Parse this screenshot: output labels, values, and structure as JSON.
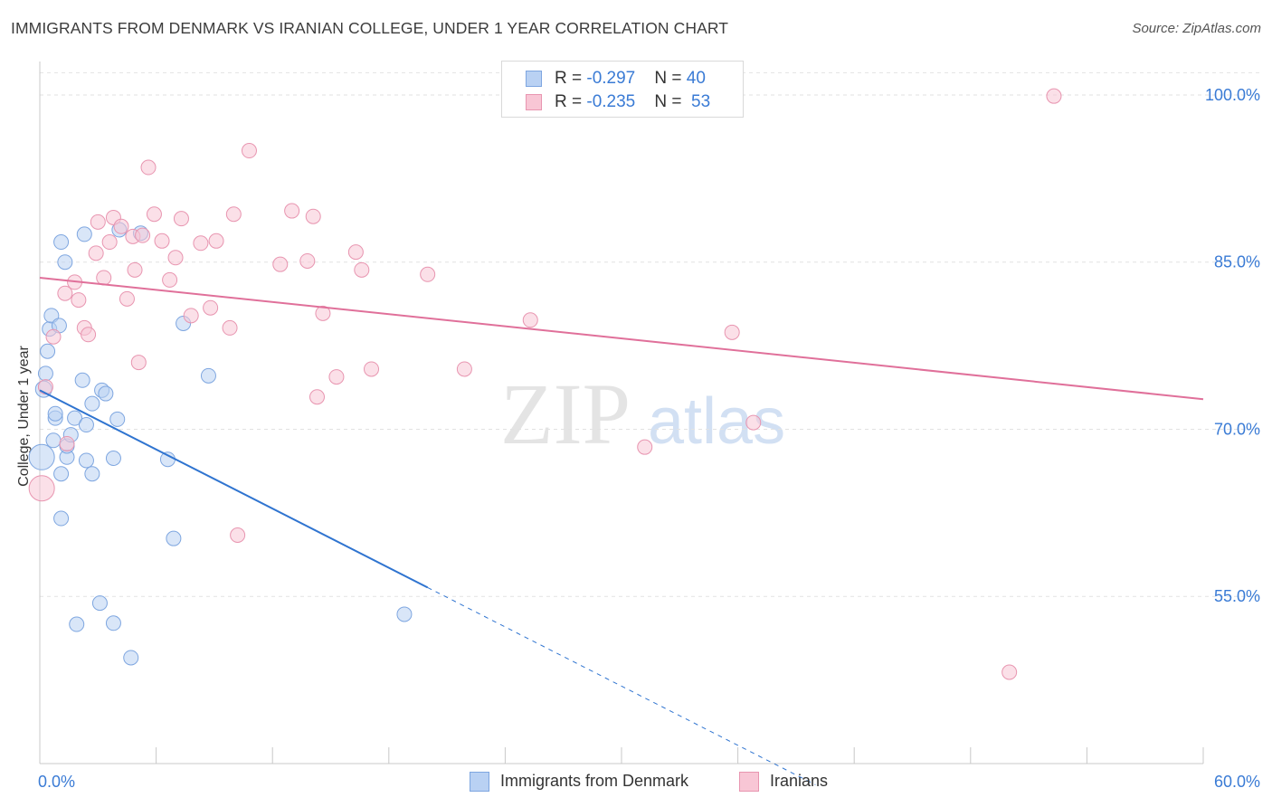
{
  "title": "IMMIGRANTS FROM DENMARK VS IRANIAN COLLEGE, UNDER 1 YEAR CORRELATION CHART",
  "source": "Source: ZipAtlas.com",
  "watermark": {
    "zip": "ZIP",
    "atlas": "atlas"
  },
  "colors": {
    "blue_fill": "#b9d1f3",
    "blue_stroke": "#7ea6e0",
    "blue_line": "#2f74d0",
    "pink_fill": "#f8c6d5",
    "pink_stroke": "#e895b0",
    "pink_line": "#e0709a",
    "axis_label": "#3a7bd5",
    "grid": "#e2e2e2"
  },
  "stats_box": {
    "rows": [
      {
        "series": "Immigrants from Denmark",
        "r_label": "R = ",
        "r_value": "-0.297",
        "n_label": "N = ",
        "n_value": "40"
      },
      {
        "series": "Iranians",
        "r_label": "R = ",
        "r_value": "-0.235",
        "n_label": "N = ",
        "n_value": "53"
      }
    ]
  },
  "chart_data": {
    "type": "scatter",
    "title": "IMMIGRANTS FROM DENMARK VS IRANIAN COLLEGE, UNDER 1 YEAR CORRELATION CHART",
    "xlabel": "",
    "ylabel": "College, Under 1 year",
    "xlim": [
      0,
      60
    ],
    "ylim": [
      40,
      103
    ],
    "x_tick_labels": [
      {
        "value": 0,
        "label": "0.0%"
      },
      {
        "value": 60,
        "label": "60.0%"
      }
    ],
    "y_ticks": [
      {
        "value": 55,
        "label": "55.0%"
      },
      {
        "value": 70,
        "label": "70.0%"
      },
      {
        "value": 85,
        "label": "85.0%"
      },
      {
        "value": 100,
        "label": "100.0%"
      }
    ],
    "grid": true,
    "legend": [
      "Immigrants from Denmark",
      "Iranians"
    ],
    "series": [
      {
        "name": "Immigrants from Denmark",
        "color": "blue",
        "trend": {
          "x0": 0,
          "y0": 73.5,
          "x1": 20,
          "y1": 55.8,
          "dashed_to_x": 40
        },
        "points": [
          [
            0.1,
            67.5,
            14
          ],
          [
            0.2,
            73.6,
            9
          ],
          [
            0.3,
            75.0,
            8
          ],
          [
            0.4,
            77.0,
            8
          ],
          [
            0.5,
            79.0,
            8
          ],
          [
            0.6,
            80.2,
            8
          ],
          [
            0.7,
            69.0,
            8
          ],
          [
            0.8,
            71.0,
            8
          ],
          [
            0.8,
            71.4,
            8
          ],
          [
            1.0,
            79.3,
            8
          ],
          [
            1.1,
            86.8,
            8
          ],
          [
            1.1,
            66.0,
            8
          ],
          [
            1.1,
            62.0,
            8
          ],
          [
            1.3,
            85.0,
            8
          ],
          [
            1.4,
            67.5,
            8
          ],
          [
            1.4,
            68.5,
            8
          ],
          [
            1.6,
            69.5,
            8
          ],
          [
            1.8,
            71.0,
            8
          ],
          [
            1.9,
            52.5,
            8
          ],
          [
            2.2,
            74.4,
            8
          ],
          [
            2.3,
            87.5,
            8
          ],
          [
            2.4,
            70.4,
            8
          ],
          [
            2.4,
            67.2,
            8
          ],
          [
            2.7,
            66.0,
            8
          ],
          [
            2.7,
            72.3,
            8
          ],
          [
            3.1,
            54.4,
            8
          ],
          [
            3.2,
            73.5,
            8
          ],
          [
            3.4,
            73.2,
            8
          ],
          [
            3.8,
            52.6,
            8
          ],
          [
            3.8,
            67.4,
            8
          ],
          [
            4.0,
            70.9,
            8
          ],
          [
            4.1,
            87.9,
            8
          ],
          [
            4.7,
            49.5,
            8
          ],
          [
            5.2,
            87.6,
            8
          ],
          [
            6.6,
            67.3,
            8
          ],
          [
            6.9,
            60.2,
            8
          ],
          [
            7.4,
            79.5,
            8
          ],
          [
            8.7,
            74.8,
            8
          ],
          [
            18.8,
            53.4,
            8
          ]
        ]
      },
      {
        "name": "Iranians",
        "color": "pink",
        "trend": {
          "x0": 0,
          "y0": 83.6,
          "x1": 60,
          "y1": 72.7
        },
        "points": [
          [
            0.1,
            64.7,
            14
          ],
          [
            0.3,
            73.8,
            8
          ],
          [
            0.7,
            78.3,
            8
          ],
          [
            1.4,
            68.7,
            8
          ],
          [
            1.3,
            82.2,
            8
          ],
          [
            1.8,
            83.2,
            8
          ],
          [
            2.0,
            81.6,
            8
          ],
          [
            2.3,
            79.1,
            8
          ],
          [
            2.5,
            78.5,
            8
          ],
          [
            2.9,
            85.8,
            8
          ],
          [
            3.0,
            88.6,
            8
          ],
          [
            3.3,
            83.6,
            8
          ],
          [
            3.6,
            86.8,
            8
          ],
          [
            3.8,
            89.0,
            8
          ],
          [
            4.2,
            88.2,
            8
          ],
          [
            4.5,
            81.7,
            8
          ],
          [
            4.8,
            87.3,
            8
          ],
          [
            4.9,
            84.3,
            8
          ],
          [
            5.1,
            76.0,
            8
          ],
          [
            5.3,
            87.4,
            8
          ],
          [
            5.6,
            93.5,
            8
          ],
          [
            5.9,
            89.3,
            8
          ],
          [
            6.3,
            86.9,
            8
          ],
          [
            6.7,
            83.4,
            8
          ],
          [
            7.0,
            85.4,
            8
          ],
          [
            7.3,
            88.9,
            8
          ],
          [
            7.8,
            80.2,
            8
          ],
          [
            8.3,
            86.7,
            8
          ],
          [
            8.8,
            80.9,
            8
          ],
          [
            9.1,
            86.9,
            8
          ],
          [
            9.8,
            79.1,
            8
          ],
          [
            10.0,
            89.3,
            8
          ],
          [
            10.2,
            60.5,
            8
          ],
          [
            10.8,
            95.0,
            8
          ],
          [
            12.4,
            84.8,
            8
          ],
          [
            13.0,
            89.6,
            8
          ],
          [
            13.8,
            85.1,
            8
          ],
          [
            14.1,
            89.1,
            8
          ],
          [
            14.3,
            72.9,
            8
          ],
          [
            14.6,
            80.4,
            8
          ],
          [
            15.3,
            74.7,
            8
          ],
          [
            16.3,
            85.9,
            8
          ],
          [
            16.6,
            84.3,
            8
          ],
          [
            17.1,
            75.4,
            8
          ],
          [
            20.0,
            83.9,
            8
          ],
          [
            21.9,
            75.4,
            8
          ],
          [
            25.3,
            79.8,
            8
          ],
          [
            31.2,
            68.4,
            8
          ],
          [
            35.7,
            78.7,
            8
          ],
          [
            36.8,
            70.6,
            8
          ],
          [
            50.0,
            48.2,
            8
          ],
          [
            52.3,
            99.9,
            8
          ]
        ]
      }
    ]
  }
}
